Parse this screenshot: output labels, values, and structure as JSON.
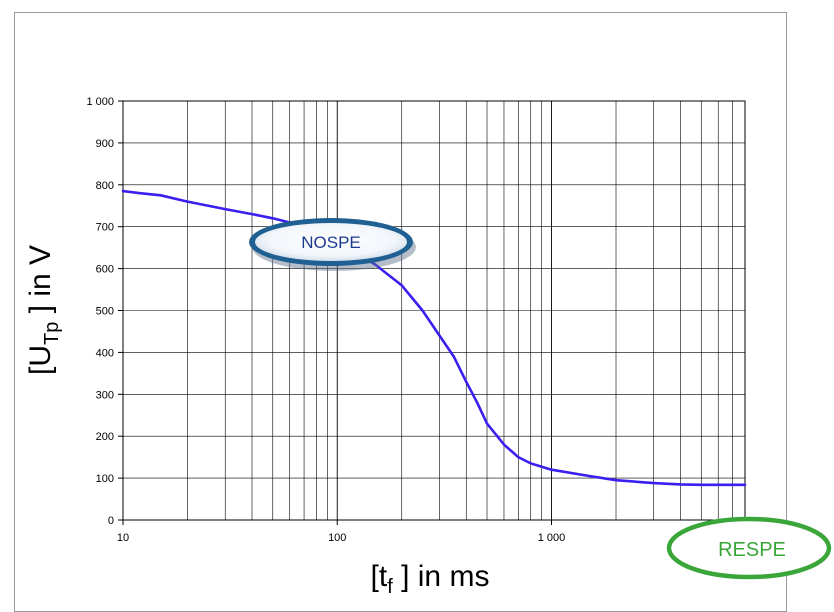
{
  "chart_data": {
    "type": "line",
    "xscale": "log",
    "xlim": [
      10,
      8000
    ],
    "ylim": [
      0,
      1000
    ],
    "grid": true,
    "x_ticks": [
      {
        "value": 10,
        "label": "10"
      },
      {
        "value": 100,
        "label": "100"
      },
      {
        "value": 1000,
        "label": "1 000"
      }
    ],
    "y_ticks": [
      {
        "value": 0,
        "label": "0"
      },
      {
        "value": 100,
        "label": "100"
      },
      {
        "value": 200,
        "label": "200"
      },
      {
        "value": 300,
        "label": "300"
      },
      {
        "value": 400,
        "label": "400"
      },
      {
        "value": 500,
        "label": "500"
      },
      {
        "value": 600,
        "label": "600"
      },
      {
        "value": 700,
        "label": "700"
      },
      {
        "value": 800,
        "label": "800"
      },
      {
        "value": 900,
        "label": "900"
      },
      {
        "value": 1000,
        "label": "1 000"
      }
    ],
    "xlabel": {
      "pre": "[t",
      "sub": "f",
      "post": " ] in ms"
    },
    "ylabel": {
      "pre": "[U",
      "sub": "Tp",
      "post": " ] in V"
    },
    "series": [
      {
        "color": "#3b1ff0",
        "x": [
          10,
          12,
          15,
          20,
          30,
          40,
          50,
          60,
          70,
          80,
          100,
          120,
          150,
          200,
          250,
          300,
          350,
          400,
          450,
          500,
          600,
          700,
          800,
          1000,
          1500,
          2000,
          3000,
          4000,
          5000,
          8000
        ],
        "y": [
          785,
          780,
          775,
          760,
          742,
          730,
          720,
          710,
          695,
          682,
          660,
          638,
          610,
          560,
          500,
          440,
          390,
          330,
          280,
          230,
          180,
          150,
          135,
          120,
          105,
          95,
          88,
          85,
          84,
          84
        ]
      }
    ],
    "annotations": [
      {
        "text": "NOSPE",
        "color": "#1b3a8f",
        "border": "#2a5a8f"
      },
      {
        "text": "RESPE",
        "color": "#3aa63a",
        "border": "#3aa63a"
      }
    ]
  }
}
